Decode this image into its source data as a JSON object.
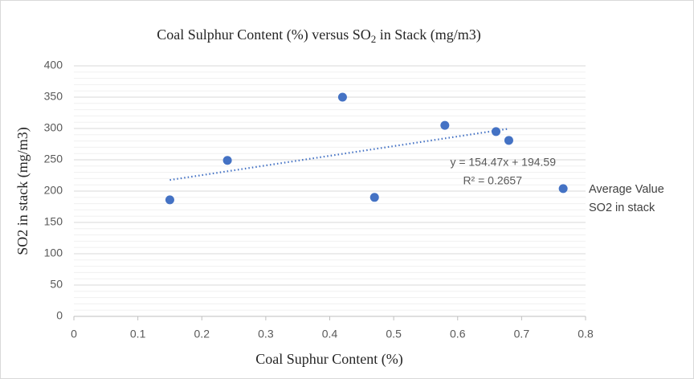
{
  "chart_data": {
    "type": "scatter",
    "title": [
      "Coal Sulphur Content (%) versus SO",
      "2",
      " in Stack (mg/m3)"
    ],
    "x_label": "Coal Suphur Content (%)",
    "y_label": "SO2 in stack (mg/m3)",
    "series": [
      {
        "name": "Average Value SO2 in stack",
        "color": "#4472c4",
        "x": [
          0.15,
          0.24,
          0.42,
          0.47,
          0.58,
          0.66,
          0.68,
          0.765
        ],
        "values": [
          186,
          249,
          350,
          190,
          305,
          295,
          281,
          204
        ]
      }
    ],
    "trendline": {
      "slope": 154.47,
      "intercept": 194.59,
      "label": "y = 154.47x + 194.59",
      "r2_label": "R² = 0.2657",
      "r2": 0.2657,
      "color": "#4472c4"
    },
    "xlim": [
      0,
      0.8
    ],
    "xticks": [
      0,
      0.1,
      0.2,
      0.3,
      0.4,
      0.5,
      0.6,
      0.7,
      0.8
    ],
    "ylim": [
      0,
      400
    ],
    "yticks": [
      0,
      50,
      100,
      150,
      200,
      250,
      300,
      350,
      400
    ],
    "grid": true,
    "minor_grid": true,
    "legend": "right"
  }
}
